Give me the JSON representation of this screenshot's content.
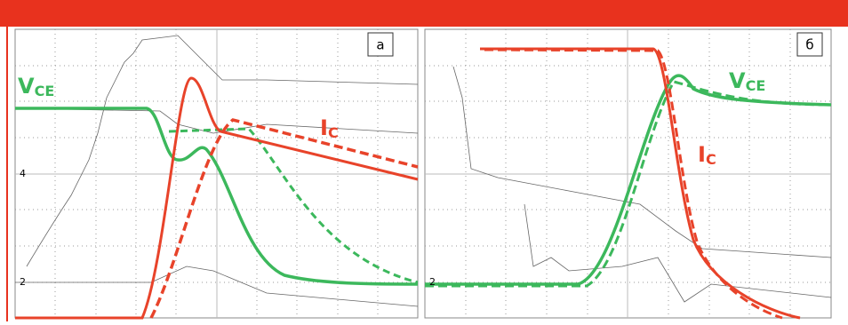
{
  "panels": [
    {
      "label": "а",
      "vce": {
        "main": "V",
        "sub": "CE"
      },
      "ic": {
        "main": "I",
        "sub": "C"
      },
      "markers": [
        "4",
        "2"
      ]
    },
    {
      "label": "б",
      "vce": {
        "main": "V",
        "sub": "CE"
      },
      "ic": {
        "main": "I",
        "sub": "C"
      },
      "markers": [
        "2"
      ]
    }
  ]
}
